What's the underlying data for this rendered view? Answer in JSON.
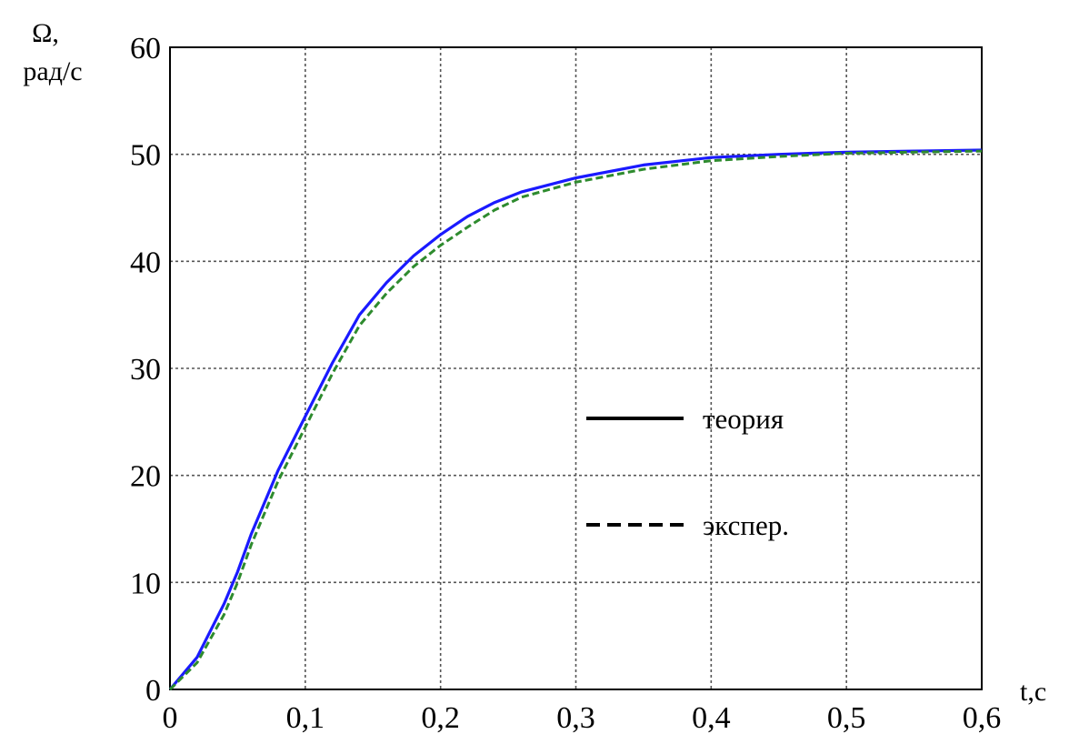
{
  "chart_data": {
    "type": "line",
    "title": "",
    "ylabel_line1": "Ω,",
    "ylabel_line2": "рад/с",
    "xlabel": "t,c",
    "xlim": [
      0,
      0.6
    ],
    "ylim": [
      0,
      60
    ],
    "x_ticks": [
      0,
      0.1,
      0.2,
      0.3,
      0.4,
      0.5,
      0.6
    ],
    "x_tick_labels": [
      "0",
      "0,1",
      "0,2",
      "0,3",
      "0,4",
      "0,5",
      "0,6"
    ],
    "y_ticks": [
      0,
      10,
      20,
      30,
      40,
      50,
      60
    ],
    "y_tick_labels": [
      "0",
      "10",
      "20",
      "30",
      "40",
      "50",
      "60"
    ],
    "grid": true,
    "legend_position": "center-right",
    "series": [
      {
        "name": "теория",
        "color": "#1a1aff",
        "style": "solid",
        "x": [
          0,
          0.02,
          0.04,
          0.05,
          0.06,
          0.08,
          0.1,
          0.12,
          0.14,
          0.16,
          0.18,
          0.2,
          0.22,
          0.24,
          0.26,
          0.3,
          0.35,
          0.4,
          0.45,
          0.5,
          0.55,
          0.6
        ],
        "y": [
          0,
          3,
          8,
          11,
          14.5,
          20.5,
          25.5,
          30.5,
          35,
          38,
          40.5,
          42.5,
          44.2,
          45.5,
          46.5,
          47.8,
          49,
          49.7,
          50,
          50.2,
          50.3,
          50.4
        ]
      },
      {
        "name": "экспер.",
        "color": "#2e8b2e",
        "style": "dashed",
        "x": [
          0,
          0.02,
          0.04,
          0.05,
          0.06,
          0.08,
          0.1,
          0.12,
          0.14,
          0.16,
          0.18,
          0.2,
          0.22,
          0.24,
          0.26,
          0.3,
          0.35,
          0.4,
          0.45,
          0.5,
          0.55,
          0.6
        ],
        "y": [
          0,
          2.5,
          7,
          10,
          13.5,
          19.5,
          24.5,
          29.5,
          34,
          37,
          39.5,
          41.5,
          43.2,
          44.8,
          46,
          47.4,
          48.6,
          49.4,
          49.8,
          50.1,
          50.2,
          50.3
        ]
      }
    ],
    "legend": {
      "solid_label": "теория",
      "solid_color": "#000000",
      "dashed_label": "экспер.",
      "dashed_color": "#000000"
    }
  }
}
